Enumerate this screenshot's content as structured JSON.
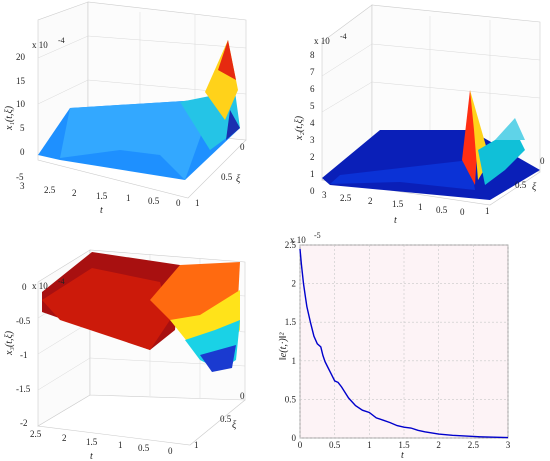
{
  "chart_data": [
    {
      "type": "surface",
      "panel": "top-left",
      "zlabel": "x₁(t,ξ)",
      "xlabel": "t",
      "ylabel": "ξ",
      "z_multiplier": "x 10",
      "z_exponent": "-4",
      "z_ticks": [
        "20",
        "15",
        "10",
        "5",
        "0",
        "-5"
      ],
      "t_ticks": [
        "3",
        "2.5",
        "2",
        "1.5",
        "1",
        "0.5",
        "0"
      ],
      "xi_ticks": [
        "0",
        "0.5",
        "1"
      ],
      "zlim": [
        -5,
        20
      ],
      "colormap": "jet",
      "grid": true,
      "peak": {
        "t": 0,
        "xi": 0,
        "value": 19
      }
    },
    {
      "type": "surface",
      "panel": "top-right",
      "zlabel": "x₂(t,ξ)",
      "xlabel": "t",
      "ylabel": "ξ",
      "z_multiplier": "x 10",
      "z_exponent": "-4",
      "z_ticks": [
        "8",
        "7",
        "6",
        "5",
        "4",
        "3",
        "2",
        "1",
        "0"
      ],
      "t_ticks": [
        "3",
        "2.5",
        "2",
        "1.5",
        "1",
        "0.5",
        "0"
      ],
      "xi_ticks": [
        "0",
        "0.5",
        "1"
      ],
      "zlim": [
        0,
        8
      ],
      "colormap": "jet",
      "grid": true,
      "peak": {
        "t": 0,
        "xi": 0.5,
        "value": 6.3
      }
    },
    {
      "type": "surface",
      "panel": "bottom-left",
      "zlabel": "x₃(t,ξ)",
      "xlabel": "t",
      "ylabel": "ξ",
      "z_multiplier": "x 10",
      "z_exponent": "-4",
      "z_ticks": [
        "0",
        "-0.5",
        "-1",
        "-1.5",
        "-2"
      ],
      "t_ticks": [
        "2.5",
        "2",
        "1.5",
        "1",
        "0.5",
        "0"
      ],
      "xi_ticks": [
        "0",
        "0.5",
        "1"
      ],
      "zlim": [
        -2,
        0
      ],
      "colormap": "jet",
      "grid": true,
      "trough": {
        "t": 0,
        "xi": 1,
        "value": -1.2
      }
    },
    {
      "type": "line",
      "panel": "bottom-right",
      "xlabel": "t",
      "ylabel": "‖e(t,·)‖²",
      "y_multiplier": "x 10",
      "y_exponent": "-5",
      "xlim": [
        0,
        3
      ],
      "ylim": [
        0,
        2.5
      ],
      "x_ticks": [
        "0",
        "0.5",
        "1",
        "1.5",
        "2",
        "2.5",
        "3"
      ],
      "y_ticks": [
        "0",
        "0.5",
        "1",
        "1.5",
        "2",
        "2.5"
      ],
      "grid": true,
      "line_color": "#0000cc",
      "series": [
        {
          "x": [
            0,
            0.02,
            0.05,
            0.08,
            0.1,
            0.15,
            0.2,
            0.25,
            0.3,
            0.33,
            0.36,
            0.4,
            0.45,
            0.5,
            0.55,
            0.6,
            0.7,
            0.8,
            0.9,
            1.0,
            1.1,
            1.2,
            1.3,
            1.4,
            1.5,
            1.6,
            1.7,
            1.8,
            2.0,
            2.2,
            2.4,
            2.6,
            2.8,
            3.0
          ],
          "y": [
            2.45,
            2.25,
            2.0,
            1.82,
            1.7,
            1.5,
            1.32,
            1.22,
            1.18,
            1.07,
            0.99,
            0.92,
            0.83,
            0.74,
            0.72,
            0.66,
            0.52,
            0.42,
            0.36,
            0.33,
            0.26,
            0.23,
            0.2,
            0.16,
            0.14,
            0.13,
            0.1,
            0.08,
            0.05,
            0.035,
            0.025,
            0.015,
            0.01,
            0.005
          ]
        }
      ]
    }
  ]
}
